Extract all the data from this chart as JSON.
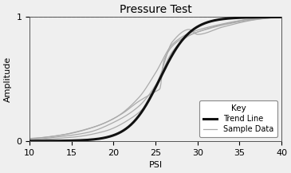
{
  "title": "Pressure Test",
  "xlabel": "PSI",
  "ylabel": "Amplitude",
  "xlim": [
    10,
    40
  ],
  "ylim": [
    0,
    1
  ],
  "x_ticks": [
    10,
    15,
    20,
    25,
    30,
    35,
    40
  ],
  "y_ticks": [
    0,
    1
  ],
  "trend_color": "#111111",
  "sample_color": "#aaaaaa",
  "trend_linewidth": 2.2,
  "sample_linewidth": 0.9,
  "background_color": "#efefef",
  "legend_title": "Key",
  "legend_labels": [
    "Trend Line",
    "Sample Data"
  ],
  "title_fontsize": 10,
  "axis_fontsize": 8,
  "tick_fontsize": 8,
  "dashed_color": "#999999",
  "dashed_linewidth": 0.8,
  "spine_color": "#555555",
  "spine_linewidth": 0.7
}
